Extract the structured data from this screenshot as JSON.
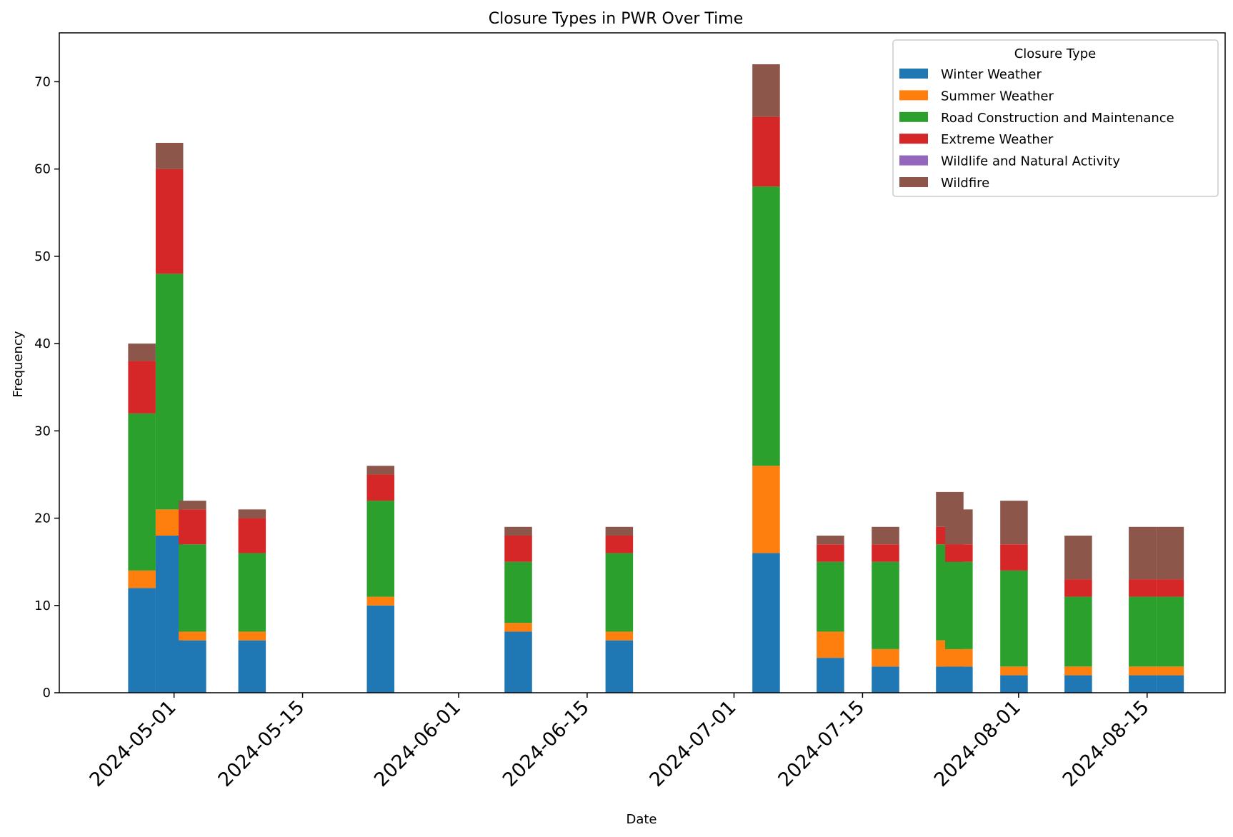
{
  "chart_data": {
    "type": "bar",
    "stacked": true,
    "title": "Closure Types in PWR Over Time",
    "xlabel": "Date",
    "ylabel": "Frequency",
    "ylim": [
      0,
      75.6
    ],
    "yticks": [
      0,
      10,
      20,
      30,
      40,
      50,
      60,
      70
    ],
    "xlim": [
      "2024-04-18T12:00",
      "2024-08-23T12:00"
    ],
    "xticks": [
      "2024-05-01",
      "2024-05-15",
      "2024-06-01",
      "2024-06-15",
      "2024-07-01",
      "2024-07-15",
      "2024-08-01",
      "2024-08-15"
    ],
    "bar_width_days": 3,
    "grid": false,
    "legend": {
      "title": "Closure Type",
      "position": "top-right"
    },
    "bars": [
      {
        "start": "2024-04-26",
        "values": [
          12,
          2,
          18,
          6,
          0,
          2
        ]
      },
      {
        "start": "2024-04-29",
        "values": [
          18,
          3,
          27,
          12,
          0,
          3
        ]
      },
      {
        "start": "2024-05-01T12:00",
        "values": [
          6,
          1,
          10,
          4,
          0,
          1
        ]
      },
      {
        "start": "2024-05-08",
        "values": [
          6,
          1,
          9,
          4,
          0,
          1
        ]
      },
      {
        "start": "2024-05-22",
        "values": [
          10,
          1,
          11,
          3,
          0,
          1
        ]
      },
      {
        "start": "2024-06-06",
        "values": [
          7,
          1,
          7,
          3,
          0,
          1
        ]
      },
      {
        "start": "2024-06-17",
        "values": [
          6,
          1,
          9,
          2,
          0,
          1
        ]
      },
      {
        "start": "2024-07-03",
        "values": [
          16,
          10,
          32,
          8,
          0,
          6
        ]
      },
      {
        "start": "2024-07-10",
        "values": [
          4,
          3,
          8,
          2,
          0,
          1
        ]
      },
      {
        "start": "2024-07-16",
        "values": [
          3,
          2,
          10,
          2,
          0,
          2
        ]
      },
      {
        "start": "2024-07-23",
        "values": [
          3,
          3,
          11,
          2,
          0,
          4
        ]
      },
      {
        "start": "2024-07-24",
        "values": [
          3,
          2,
          10,
          2,
          0,
          4
        ]
      },
      {
        "start": "2024-07-30",
        "values": [
          2,
          1,
          11,
          3,
          0,
          5
        ]
      },
      {
        "start": "2024-08-06",
        "values": [
          2,
          1,
          8,
          2,
          0,
          5
        ]
      },
      {
        "start": "2024-08-13",
        "values": [
          2,
          1,
          8,
          2,
          0,
          6
        ]
      },
      {
        "start": "2024-08-16",
        "values": [
          2,
          1,
          8,
          2,
          0,
          6
        ]
      }
    ],
    "series": [
      {
        "name": "Winter Weather",
        "color": "#1f77b4"
      },
      {
        "name": "Summer Weather",
        "color": "#ff7f0e"
      },
      {
        "name": "Road Construction and Maintenance",
        "color": "#2ca02c"
      },
      {
        "name": "Extreme Weather",
        "color": "#d62728"
      },
      {
        "name": "Wildlife and Natural Activity",
        "color": "#9467bd"
      },
      {
        "name": "Wildfire",
        "color": "#8c564b"
      }
    ]
  }
}
